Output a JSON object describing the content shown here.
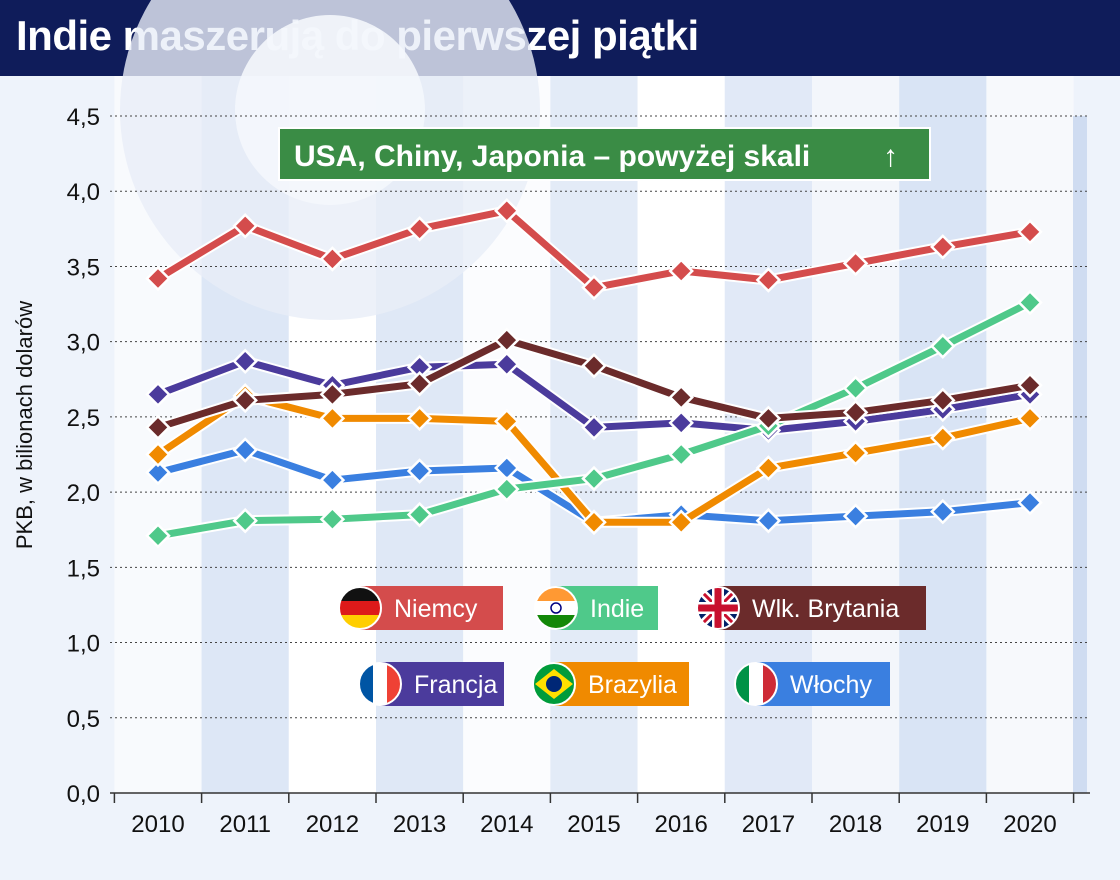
{
  "title": "Indie maszerują do pierwszej piątki",
  "chart_data": {
    "type": "line",
    "title": "Indie maszerują do pierwszej piątki",
    "xlabel": "",
    "ylabel": "PKB, w bilionach dolarów",
    "ylim": [
      0,
      4.5
    ],
    "yticks": [
      "0,0",
      "0,5",
      "1,0",
      "1,5",
      "2,0",
      "2,5",
      "3,0",
      "3,5",
      "4,0",
      "4,5"
    ],
    "x": [
      "2010",
      "2011",
      "2012",
      "2013",
      "2014",
      "2015",
      "2016",
      "2017",
      "2018",
      "2019",
      "2020"
    ],
    "grid": "horizontal dotted",
    "annotation": "USA, Chiny, Japonia – powyżej skali",
    "series": [
      {
        "name": "Francja",
        "color": "#4b3b9c",
        "values": [
          2.65,
          2.87,
          2.71,
          2.83,
          2.85,
          2.43,
          2.46,
          2.41,
          2.47,
          2.55,
          2.65
        ]
      },
      {
        "name": "Włochy",
        "color": "#3a7fe0",
        "values": [
          2.13,
          2.28,
          2.08,
          2.14,
          2.16,
          1.8,
          1.85,
          1.81,
          1.84,
          1.87,
          1.93
        ]
      },
      {
        "name": "Brazylia",
        "color": "#f08a00",
        "values": [
          2.25,
          2.64,
          2.49,
          2.49,
          2.47,
          1.8,
          1.8,
          2.16,
          2.26,
          2.36,
          2.49
        ]
      },
      {
        "name": "Indie",
        "color": "#4fc98a",
        "values": [
          1.71,
          1.81,
          1.82,
          1.85,
          2.02,
          2.09,
          2.25,
          2.44,
          2.69,
          2.97,
          3.26
        ]
      },
      {
        "name": "Wlk. Brytania",
        "color": "#6b2b2b",
        "values": [
          2.43,
          2.61,
          2.65,
          2.72,
          3.01,
          2.84,
          2.63,
          2.49,
          2.53,
          2.61,
          2.71
        ]
      },
      {
        "name": "Niemcy",
        "color": "#d44c4c",
        "values": [
          3.42,
          3.77,
          3.55,
          3.75,
          3.87,
          3.36,
          3.47,
          3.41,
          3.52,
          3.63,
          3.73
        ]
      }
    ],
    "legend": [
      {
        "label": "Niemcy",
        "flag": "flag-germany"
      },
      {
        "label": "Indie",
        "flag": "flag-india"
      },
      {
        "label": "Wlk. Brytania",
        "flag": "flag-uk"
      },
      {
        "label": "Francja",
        "flag": "flag-france"
      },
      {
        "label": "Brazylia",
        "flag": "flag-brazil"
      },
      {
        "label": "Włochy",
        "flag": "flag-italy"
      }
    ],
    "legend_placement": "bottom-center",
    "colors": {
      "header": "#0f1c5a",
      "annotation": "#3a8c45"
    }
  }
}
